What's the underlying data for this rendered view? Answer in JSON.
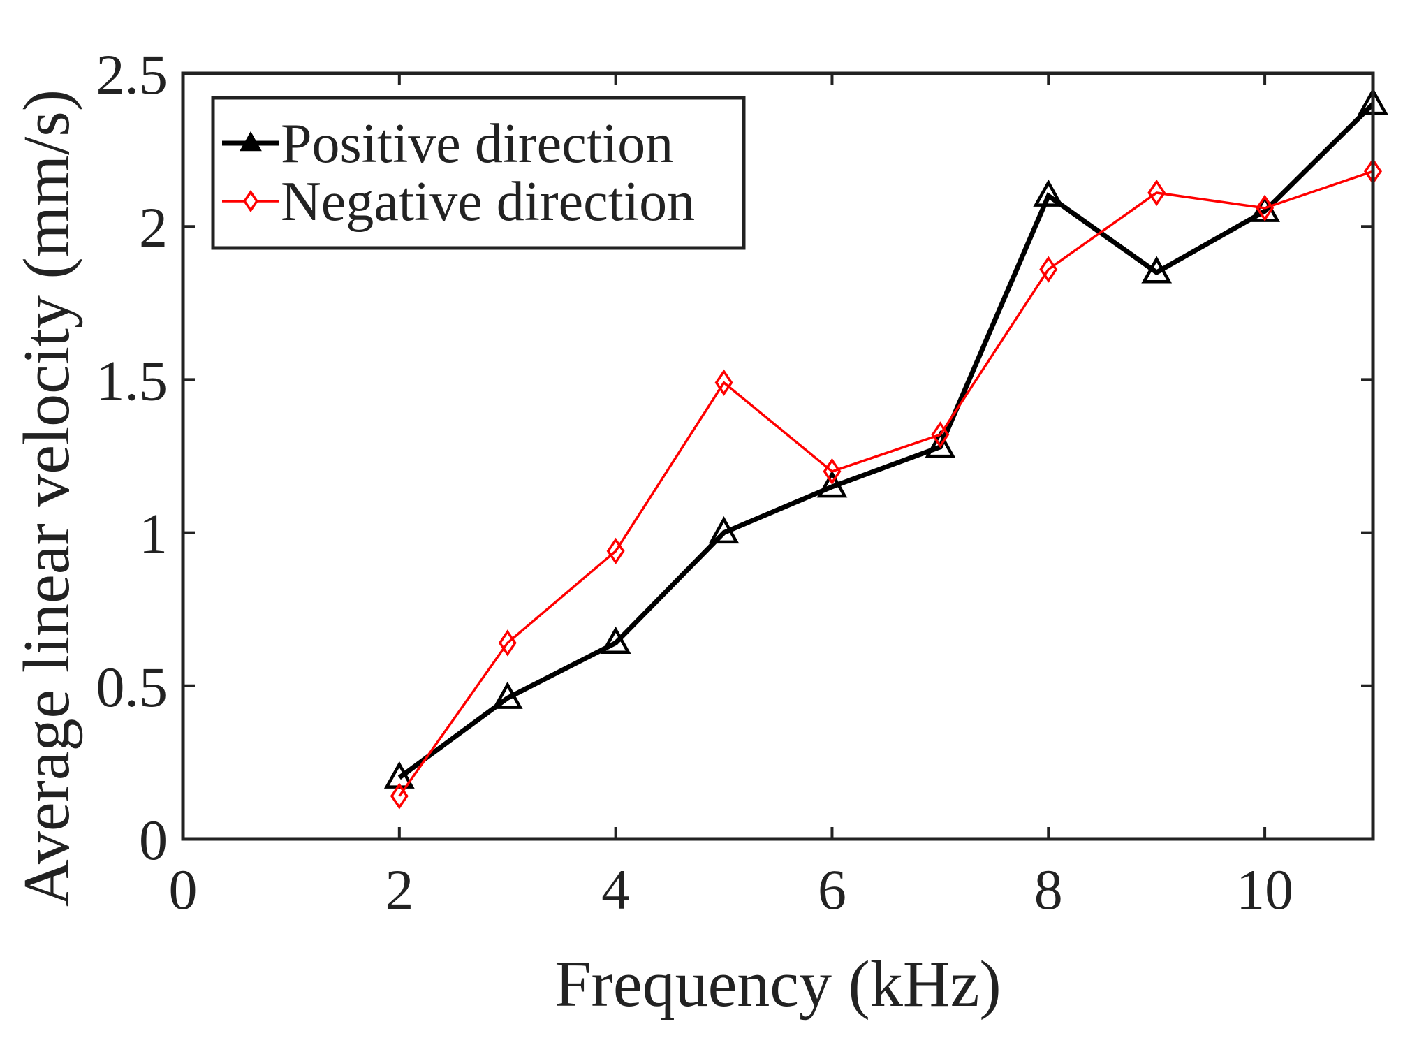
{
  "chart_data": {
    "type": "line",
    "title": "",
    "xlabel": "Frequency (kHz)",
    "ylabel": "Average linear velocity (mm/s)",
    "xlim": [
      0,
      11
    ],
    "ylim": [
      0,
      2.5
    ],
    "xticks": [
      0,
      2,
      4,
      6,
      8,
      10
    ],
    "yticks": [
      0,
      0.5,
      1,
      1.5,
      2,
      2.5
    ],
    "xtick_labels": [
      "0",
      "2",
      "4",
      "6",
      "8",
      "10"
    ],
    "ytick_labels": [
      "0",
      "0.5",
      "1",
      "1.5",
      "2",
      "2.5"
    ],
    "grid": false,
    "legend_position": "top-left",
    "x": [
      2,
      3,
      4,
      5,
      6,
      7,
      8,
      9,
      10,
      11
    ],
    "series": [
      {
        "name": "Positive direction",
        "color": "#000000",
        "marker": "triangle",
        "values": [
          0.2,
          0.46,
          0.64,
          1.0,
          1.15,
          1.28,
          2.1,
          1.85,
          2.05,
          2.4
        ]
      },
      {
        "name": "Negative direction",
        "color": "#ff0000",
        "marker": "diamond",
        "values": [
          0.14,
          0.64,
          0.94,
          1.49,
          1.2,
          1.32,
          1.86,
          2.11,
          2.06,
          2.18
        ]
      }
    ]
  }
}
